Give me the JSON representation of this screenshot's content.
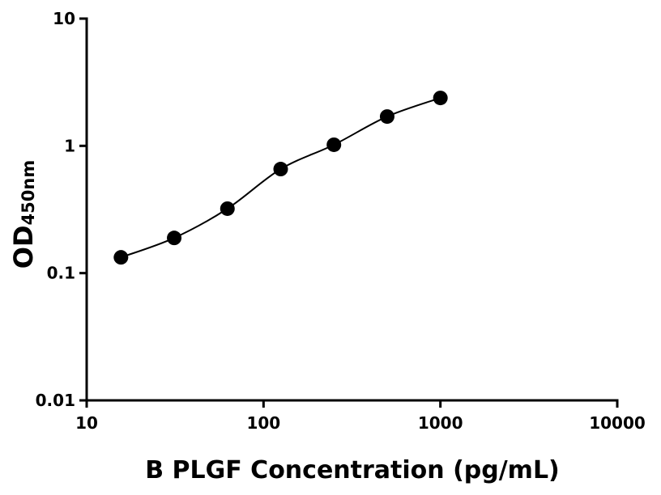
{
  "chart_data": {
    "type": "scatter",
    "x_label": "B PLGF Concentration (pg/mL)",
    "y_label": "OD",
    "y_label_subscript": "450nm",
    "log_x": true,
    "log_y": true,
    "fit_curve": true,
    "color": "#000000",
    "x": [
      15.625,
      31.25,
      62.5,
      125,
      250,
      500,
      1000
    ],
    "values": [
      0.133,
      0.189,
      0.321,
      0.657,
      1.02,
      1.7,
      2.38
    ],
    "xlim": [
      10,
      10000
    ],
    "xticks": [
      10,
      100,
      1000,
      10000
    ],
    "ylim": [
      0.01,
      10
    ],
    "yticks": [
      0.01,
      0.1,
      1,
      10
    ]
  }
}
